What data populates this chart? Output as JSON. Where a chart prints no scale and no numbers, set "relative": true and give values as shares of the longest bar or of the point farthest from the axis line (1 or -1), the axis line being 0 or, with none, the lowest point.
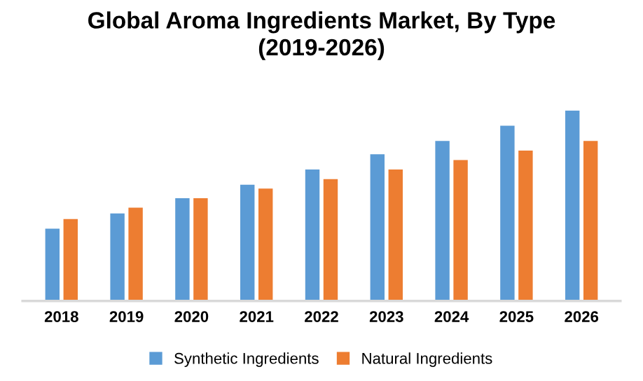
{
  "chart_data": {
    "type": "bar",
    "title": "Global Aroma Ingredients Market, By Type\n(2019-2026)",
    "relative": true,
    "categories": [
      "2018",
      "2019",
      "2020",
      "2021",
      "2022",
      "2023",
      "2024",
      "2025",
      "2026"
    ],
    "series": [
      {
        "name": "Synthetic Ingredients",
        "color": "#5b9bd5",
        "values": [
          0.38,
          0.46,
          0.54,
          0.61,
          0.69,
          0.77,
          0.84,
          0.92,
          1
        ]
      },
      {
        "name": "Natural Ingredients",
        "color": "#ed7d31",
        "values": [
          0.43,
          0.49,
          0.54,
          0.59,
          0.64,
          0.69,
          0.74,
          0.79,
          0.84
        ]
      }
    ],
    "legend": "bottom",
    "grid": false
  }
}
